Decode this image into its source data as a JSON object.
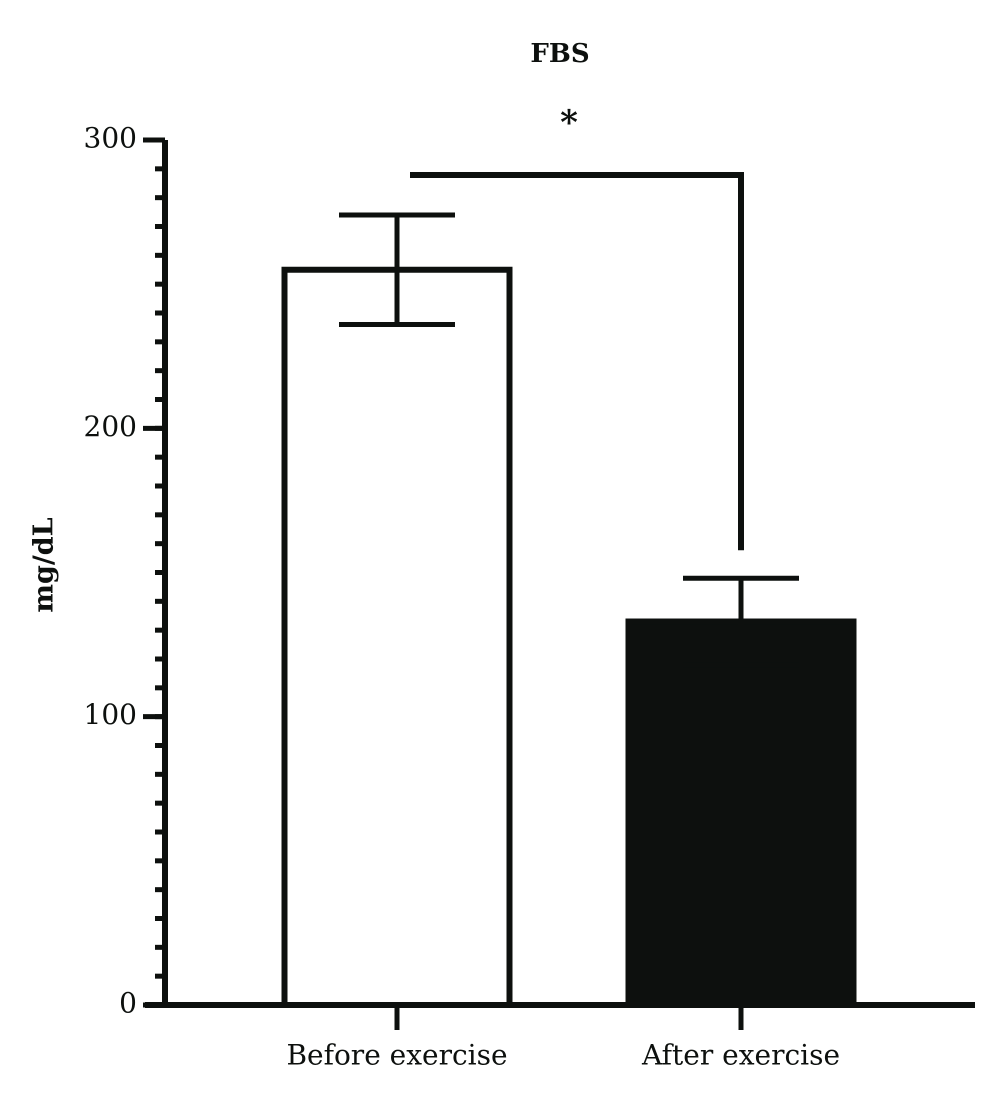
{
  "chart_data": {
    "type": "bar",
    "title": "FBS",
    "ylabel": "mg/dL",
    "categories": [
      "Before exercise",
      "After exercise"
    ],
    "values": [
      255,
      133
    ],
    "errors": [
      19,
      15
    ],
    "colors": [
      "#ffffff",
      "#0d100e"
    ],
    "edge_color": "#0d100e",
    "ylim": [
      0,
      300
    ],
    "yticks": [
      0,
      100,
      200,
      300
    ],
    "minor_tick_step": 10,
    "significance": {
      "label": "*",
      "between": [
        0,
        1
      ]
    }
  }
}
